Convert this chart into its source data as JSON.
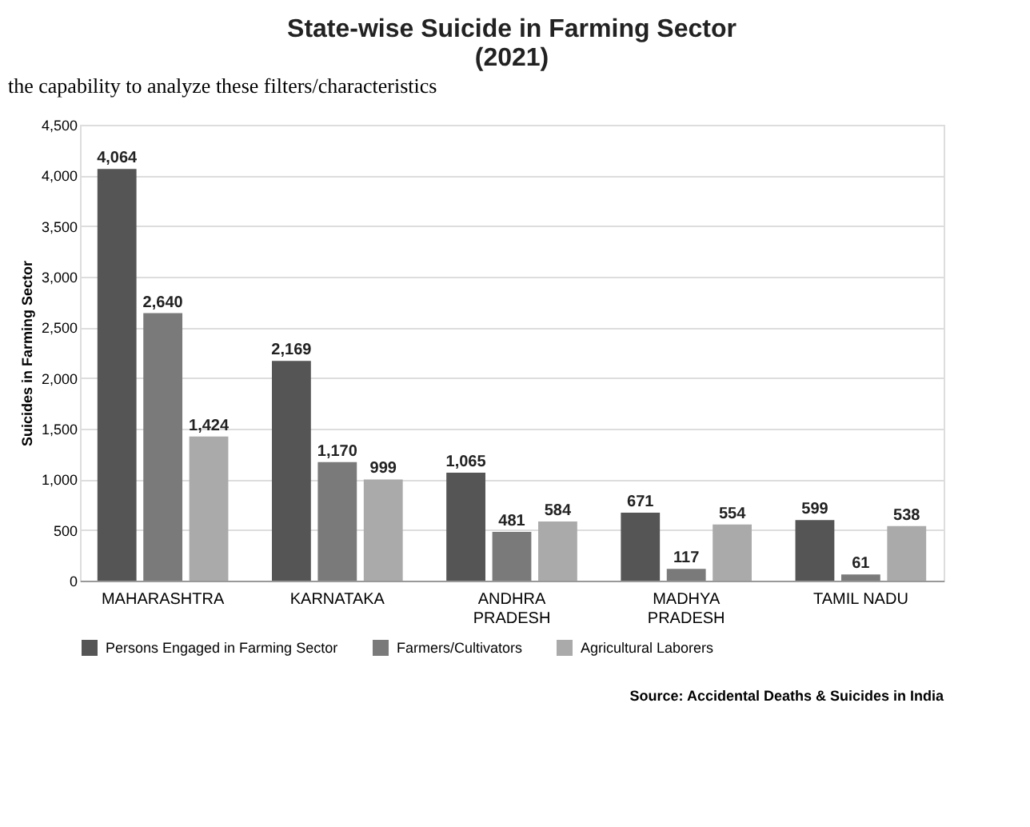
{
  "chart_data": {
    "type": "bar",
    "title": [
      "State-wise Suicide in Farming Sector",
      "(2021)"
    ],
    "ylabel": "Suicides in Farming Sector",
    "categories": [
      "MAHARASHTRA",
      "KARNATAKA",
      "ANDHRA\nPRADESH",
      "MADHYA\nPRADESH",
      "TAMIL NADU"
    ],
    "series": [
      {
        "name": "Persons Engaged in Farming Sector",
        "color": "#555555",
        "values": [
          4064,
          2169,
          1065,
          671,
          599
        ],
        "value_labels": [
          "4,064",
          "2,169",
          "1,065",
          "671",
          "599"
        ]
      },
      {
        "name": "Farmers/Cultivators",
        "color": "#7a7a7a",
        "values": [
          2640,
          1170,
          481,
          117,
          61
        ],
        "value_labels": [
          "2,640",
          "1,170",
          "481",
          "117",
          "61"
        ]
      },
      {
        "name": "Agricultural Laborers",
        "color": "#aaaaaa",
        "values": [
          1424,
          999,
          584,
          554,
          538
        ],
        "value_labels": [
          "1,424",
          "999",
          "584",
          "554",
          "538"
        ]
      }
    ],
    "ylim": [
      0,
      4500
    ],
    "yticks": [
      0,
      {
        "value": 500,
        "label": "500"
      },
      {
        "value": 1000,
        "label": "1,000"
      },
      {
        "value": 1500,
        "label": "1,500"
      },
      {
        "value": 2000,
        "label": "2,000"
      },
      {
        "value": 2500,
        "label": "2,500"
      },
      {
        "value": 3000,
        "label": "3,000"
      },
      {
        "value": 3500,
        "label": "3,500"
      },
      {
        "value": 4000,
        "label": "4,000"
      },
      {
        "value": 4500,
        "label": "4,500"
      }
    ],
    "grid": "y",
    "legend": "bottom",
    "annotations": [
      "the capability to analyze these filters/characteristics",
      "Source: Accidental Deaths & Suicides in India"
    ]
  }
}
